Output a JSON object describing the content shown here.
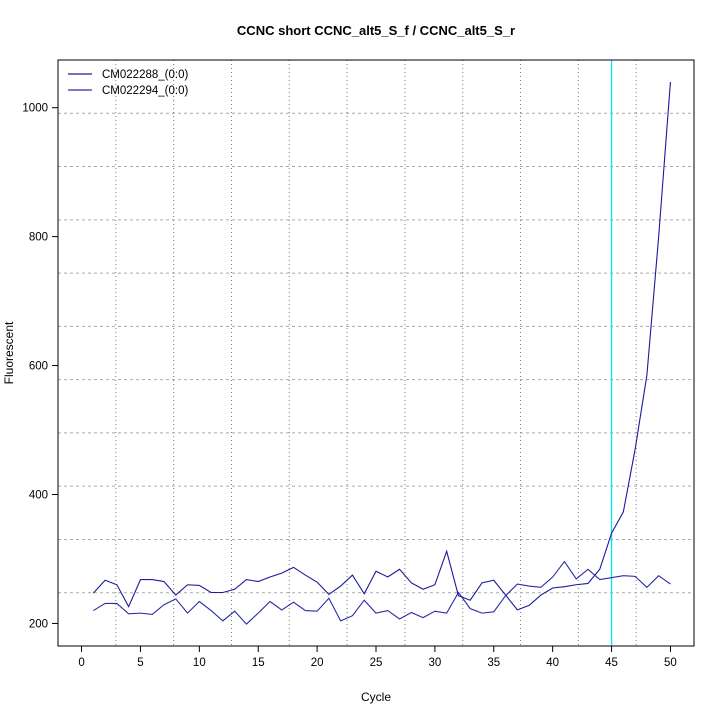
{
  "chart_data": {
    "type": "line",
    "title": "CCNC short CCNC_alt5_S_f / CCNC_alt5_S_r",
    "xlabel": "Cycle",
    "ylabel": "Fluorescent",
    "xlim": [
      -2,
      52
    ],
    "ylim": [
      165,
      1074
    ],
    "xticks": [
      0,
      5,
      10,
      15,
      20,
      25,
      30,
      35,
      40,
      45,
      50
    ],
    "yticks": [
      200,
      400,
      600,
      800,
      1000
    ],
    "grid": true,
    "legend_position": "top-left",
    "threshold_cycle": 45,
    "threshold_color": "#00e5ff",
    "x": [
      1,
      2,
      3,
      4,
      5,
      6,
      7,
      8,
      9,
      10,
      11,
      12,
      13,
      14,
      15,
      16,
      17,
      18,
      19,
      20,
      21,
      22,
      23,
      24,
      25,
      26,
      27,
      28,
      29,
      30,
      31,
      32,
      33,
      34,
      35,
      36,
      37,
      38,
      39,
      40,
      41,
      42,
      43,
      44,
      45,
      46,
      47,
      48,
      49,
      50
    ],
    "series": [
      {
        "name": "CM022288_(0:0)",
        "color": "#1a1a9a",
        "values": [
          247,
          267,
          260,
          226,
          268,
          268,
          265,
          244,
          260,
          259,
          248,
          248,
          253,
          268,
          265,
          272,
          278,
          287,
          275,
          264,
          245,
          258,
          275,
          246,
          281,
          272,
          284,
          263,
          253,
          260,
          312,
          243,
          236,
          263,
          267,
          244,
          221,
          228,
          244,
          255,
          257,
          260,
          262,
          284,
          340,
          373,
          470,
          585,
          800,
          1040
        ]
      },
      {
        "name": "CM022294_(0:0)",
        "color": "#2a2aa8",
        "values": [
          220,
          231,
          231,
          215,
          216,
          214,
          229,
          238,
          216,
          234,
          220,
          204,
          219,
          199,
          216,
          234,
          221,
          233,
          220,
          219,
          239,
          204,
          212,
          236,
          216,
          220,
          207,
          217,
          209,
          219,
          216,
          248,
          223,
          216,
          218,
          243,
          261,
          258,
          256,
          272,
          296,
          269,
          284,
          268,
          271,
          274,
          273,
          256,
          274,
          261
        ]
      }
    ]
  }
}
